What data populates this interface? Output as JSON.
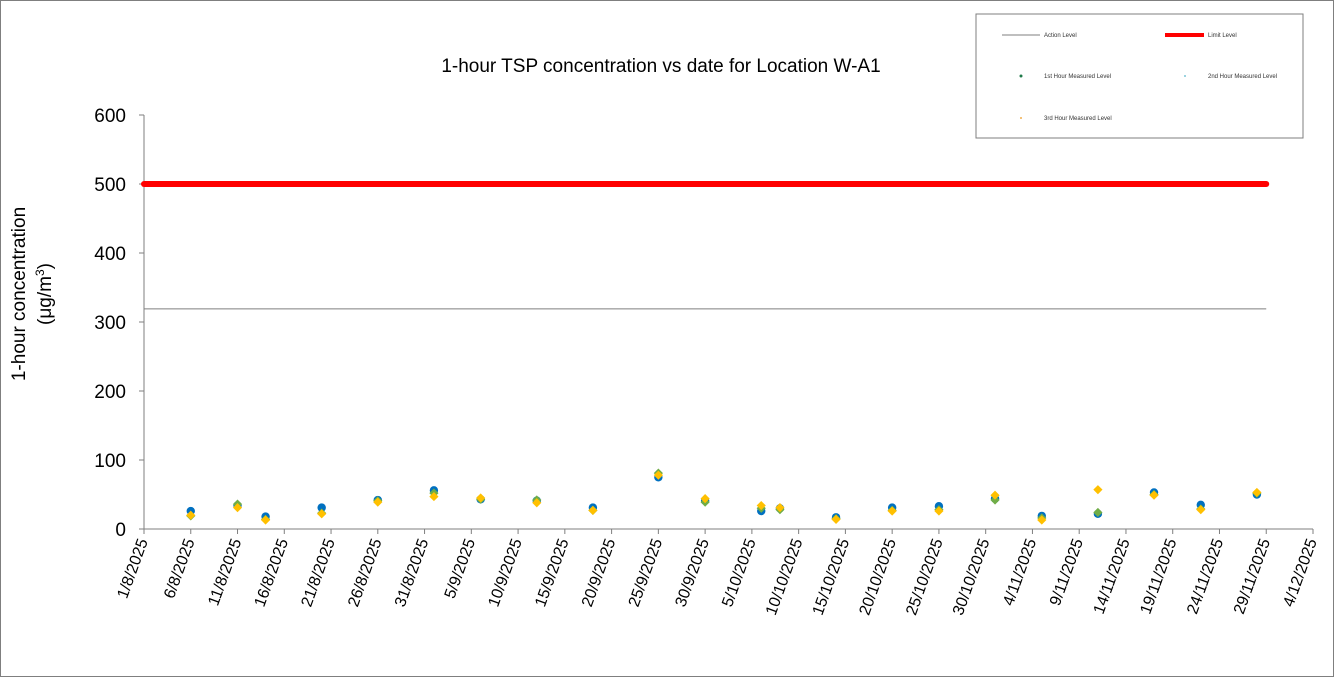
{
  "chart_data": {
    "type": "scatter",
    "title": "1-hour TSP concentration vs date for Location W-A1",
    "ylabel": "1-hour concentration",
    "ylabel_unit_prefix": "(μg/m",
    "ylabel_unit_sup": "3",
    "ylabel_unit_suffix": ")",
    "xlabel": "",
    "ylim": [
      0,
      600
    ],
    "yticks": [
      "0",
      "100",
      "200",
      "300",
      "400",
      "500",
      "600"
    ],
    "xlim": [
      "2025-08-01",
      "2025-12-04"
    ],
    "xticks": [
      {
        "date": "2025-08-01",
        "label": "1/8/2025"
      },
      {
        "date": "2025-08-06",
        "label": "6/8/2025"
      },
      {
        "date": "2025-08-11",
        "label": "11/8/2025"
      },
      {
        "date": "2025-08-16",
        "label": "16/8/2025"
      },
      {
        "date": "2025-08-21",
        "label": "21/8/2025"
      },
      {
        "date": "2025-08-26",
        "label": "26/8/2025"
      },
      {
        "date": "2025-08-31",
        "label": "31/8/2025"
      },
      {
        "date": "2025-09-05",
        "label": "5/9/2025"
      },
      {
        "date": "2025-09-10",
        "label": "10/9/2025"
      },
      {
        "date": "2025-09-15",
        "label": "15/9/2025"
      },
      {
        "date": "2025-09-20",
        "label": "20/9/2025"
      },
      {
        "date": "2025-09-25",
        "label": "25/9/2025"
      },
      {
        "date": "2025-09-30",
        "label": "30/9/2025"
      },
      {
        "date": "2025-10-05",
        "label": "5/10/2025"
      },
      {
        "date": "2025-10-10",
        "label": "10/10/2025"
      },
      {
        "date": "2025-10-15",
        "label": "15/10/2025"
      },
      {
        "date": "2025-10-20",
        "label": "20/10/2025"
      },
      {
        "date": "2025-10-25",
        "label": "25/10/2025"
      },
      {
        "date": "2025-10-30",
        "label": "30/10/2025"
      },
      {
        "date": "2025-11-04",
        "label": "4/11/2025"
      },
      {
        "date": "2025-11-09",
        "label": "9/11/2025"
      },
      {
        "date": "2025-11-14",
        "label": "14/11/2025"
      },
      {
        "date": "2025-11-19",
        "label": "19/11/2025"
      },
      {
        "date": "2025-11-24",
        "label": "24/11/2025"
      },
      {
        "date": "2025-11-29",
        "label": "29/11/2025"
      },
      {
        "date": "2025-12-04",
        "label": "4/12/2025"
      }
    ],
    "action_level": {
      "name": "Action Level",
      "value": 319,
      "x_start": "2025-08-01",
      "x_end": "2025-11-29",
      "color": "#7f7f7f"
    },
    "limit_level": {
      "name": "Limit Level",
      "value": 500,
      "x_start": "2025-08-01",
      "x_end": "2025-11-29",
      "color": "#ff0000"
    },
    "series": [
      {
        "name": "1st Hour Measured Level",
        "marker": "circle",
        "color": "#0070c0",
        "points": [
          {
            "x": "2025-08-06",
            "y": 26
          },
          {
            "x": "2025-08-11",
            "y": 34
          },
          {
            "x": "2025-08-14",
            "y": 18
          },
          {
            "x": "2025-08-20",
            "y": 31
          },
          {
            "x": "2025-08-26",
            "y": 42
          },
          {
            "x": "2025-09-01",
            "y": 56
          },
          {
            "x": "2025-09-06",
            "y": 43
          },
          {
            "x": "2025-09-12",
            "y": 41
          },
          {
            "x": "2025-09-18",
            "y": 31
          },
          {
            "x": "2025-09-25",
            "y": 75
          },
          {
            "x": "2025-09-30",
            "y": 41
          },
          {
            "x": "2025-10-06",
            "y": 26
          },
          {
            "x": "2025-10-08",
            "y": 30
          },
          {
            "x": "2025-10-14",
            "y": 17
          },
          {
            "x": "2025-10-20",
            "y": 31
          },
          {
            "x": "2025-10-25",
            "y": 33
          },
          {
            "x": "2025-10-31",
            "y": 44
          },
          {
            "x": "2025-11-05",
            "y": 19
          },
          {
            "x": "2025-11-11",
            "y": 22
          },
          {
            "x": "2025-11-17",
            "y": 53
          },
          {
            "x": "2025-11-22",
            "y": 35
          },
          {
            "x": "2025-11-28",
            "y": 50
          }
        ]
      },
      {
        "name": "2nd Hour Measured Level",
        "marker": "diamond",
        "color": "#70ad47",
        "points": [
          {
            "x": "2025-08-06",
            "y": 19
          },
          {
            "x": "2025-08-11",
            "y": 36
          },
          {
            "x": "2025-08-14",
            "y": 14
          },
          {
            "x": "2025-08-20",
            "y": 23
          },
          {
            "x": "2025-08-26",
            "y": 41
          },
          {
            "x": "2025-09-01",
            "y": 52
          },
          {
            "x": "2025-09-06",
            "y": 43
          },
          {
            "x": "2025-09-12",
            "y": 42
          },
          {
            "x": "2025-09-18",
            "y": 27
          },
          {
            "x": "2025-09-25",
            "y": 81
          },
          {
            "x": "2025-09-30",
            "y": 39
          },
          {
            "x": "2025-10-06",
            "y": 30
          },
          {
            "x": "2025-10-08",
            "y": 28
          },
          {
            "x": "2025-10-14",
            "y": 15
          },
          {
            "x": "2025-10-20",
            "y": 27
          },
          {
            "x": "2025-10-25",
            "y": 28
          },
          {
            "x": "2025-10-31",
            "y": 42
          },
          {
            "x": "2025-11-05",
            "y": 16
          },
          {
            "x": "2025-11-11",
            "y": 24
          },
          {
            "x": "2025-11-17",
            "y": 50
          },
          {
            "x": "2025-11-22",
            "y": 29
          },
          {
            "x": "2025-11-28",
            "y": 52
          }
        ]
      },
      {
        "name": "3rd Hour Measured Level",
        "marker": "diamond",
        "color": "#ffc000",
        "points": [
          {
            "x": "2025-08-06",
            "y": 20
          },
          {
            "x": "2025-08-11",
            "y": 31
          },
          {
            "x": "2025-08-14",
            "y": 13
          },
          {
            "x": "2025-08-20",
            "y": 22
          },
          {
            "x": "2025-08-26",
            "y": 39
          },
          {
            "x": "2025-09-01",
            "y": 47
          },
          {
            "x": "2025-09-06",
            "y": 45
          },
          {
            "x": "2025-09-12",
            "y": 38
          },
          {
            "x": "2025-09-18",
            "y": 27
          },
          {
            "x": "2025-09-25",
            "y": 78
          },
          {
            "x": "2025-09-30",
            "y": 44
          },
          {
            "x": "2025-10-06",
            "y": 34
          },
          {
            "x": "2025-10-08",
            "y": 31
          },
          {
            "x": "2025-10-14",
            "y": 14
          },
          {
            "x": "2025-10-20",
            "y": 26
          },
          {
            "x": "2025-10-25",
            "y": 26
          },
          {
            "x": "2025-10-31",
            "y": 49
          },
          {
            "x": "2025-11-05",
            "y": 13
          },
          {
            "x": "2025-11-11",
            "y": 57
          },
          {
            "x": "2025-11-17",
            "y": 49
          },
          {
            "x": "2025-11-22",
            "y": 28
          },
          {
            "x": "2025-11-28",
            "y": 53
          }
        ]
      }
    ],
    "grid": false,
    "legend_position": "top-right"
  }
}
